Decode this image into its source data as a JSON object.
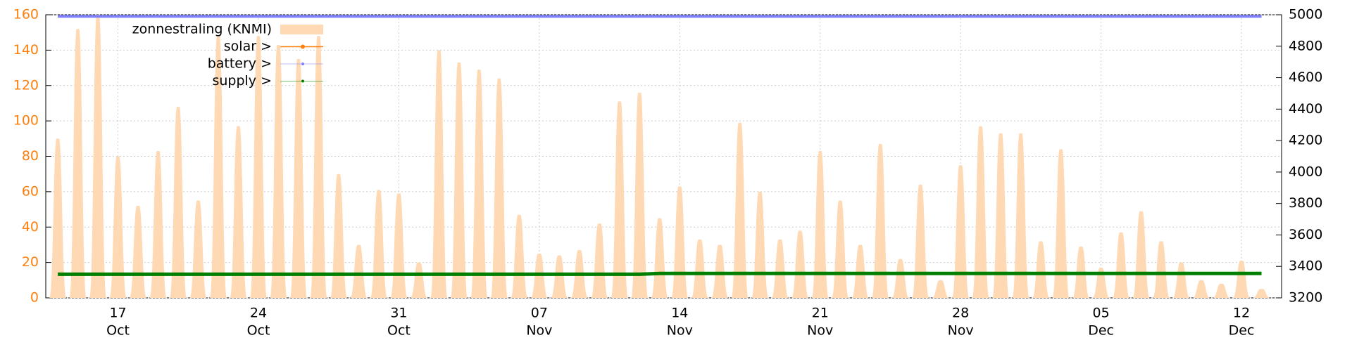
{
  "chart_data": {
    "type": "spike-area",
    "categories": [
      null,
      null,
      null,
      [
        "17",
        "Oct"
      ],
      null,
      null,
      null,
      null,
      null,
      null,
      [
        "24",
        "Oct"
      ],
      null,
      null,
      null,
      null,
      null,
      null,
      [
        "31",
        "Oct"
      ],
      null,
      null,
      null,
      null,
      null,
      null,
      [
        "07",
        "Nov"
      ],
      null,
      null,
      null,
      null,
      null,
      null,
      [
        "14",
        "Nov"
      ],
      null,
      null,
      null,
      null,
      null,
      null,
      [
        "21",
        "Nov"
      ],
      null,
      null,
      null,
      null,
      null,
      null,
      [
        "28",
        "Nov"
      ],
      null,
      null,
      null,
      null,
      null,
      null,
      [
        "05",
        "Dec"
      ],
      null,
      null,
      null,
      null,
      null,
      null,
      [
        "12",
        "Dec"
      ],
      null
    ],
    "series": [
      {
        "name": "zonnestraling (KNMI)",
        "color": "#ffd9b3",
        "values": [
          90,
          152,
          160,
          80,
          52,
          83,
          108,
          55,
          148,
          97,
          148,
          143,
          135,
          148,
          70,
          30,
          61,
          59,
          20,
          140,
          133,
          129,
          124,
          47,
          25,
          24,
          27,
          42,
          111,
          116,
          45,
          63,
          33,
          30,
          99,
          60,
          33,
          38,
          83,
          55,
          30,
          87,
          22,
          64,
          10,
          75,
          97,
          93,
          93,
          32,
          84,
          29,
          17,
          37,
          49,
          32,
          20,
          10,
          8,
          21,
          5
        ]
      },
      {
        "name": "solar >",
        "color": "#ff7f0e"
      },
      {
        "name": "battery >",
        "color": "#7f7fff",
        "axis": "y2",
        "values": [
          4990,
          4990,
          4990,
          4990,
          4990,
          4990,
          4990,
          4990,
          4990,
          4990,
          4990,
          4990,
          4990,
          4990,
          4990,
          4990,
          4990,
          4990,
          4990,
          4990,
          4990,
          4990,
          4990,
          4990,
          4990,
          4990,
          4990,
          4990,
          4990,
          4990,
          4990,
          4990,
          4990,
          4990,
          4990,
          4990,
          4990,
          4990,
          4990,
          4990,
          4990,
          4990,
          4990,
          4990,
          4990,
          4990,
          4990,
          4990,
          4990,
          4990,
          4990,
          4990,
          4990,
          4990,
          4990,
          4990,
          4990,
          4990,
          4990,
          4990,
          4990
        ]
      },
      {
        "name": "supply >",
        "color": "#007f00",
        "axis": "y2",
        "values": [
          3350,
          3350,
          3350,
          3350,
          3350,
          3350,
          3350,
          3350,
          3350,
          3350,
          3350,
          3350,
          3350,
          3350,
          3350,
          3350,
          3350,
          3350,
          3350,
          3350,
          3350,
          3350,
          3350,
          3350,
          3350,
          3350,
          3350,
          3350,
          3350,
          3350,
          3355,
          3355,
          3355,
          3355,
          3355,
          3355,
          3355,
          3355,
          3355,
          3355,
          3355,
          3355,
          3355,
          3355,
          3355,
          3355,
          3355,
          3355,
          3355,
          3355,
          3355,
          3355,
          3355,
          3355,
          3355,
          3355,
          3355,
          3355,
          3355,
          3355,
          3355
        ]
      }
    ],
    "ylim": [
      0,
      160
    ],
    "yticks": [
      0,
      20,
      40,
      60,
      80,
      100,
      120,
      140,
      160
    ],
    "ycolor": "#ff7f0e",
    "y2lim": [
      3200,
      5000
    ],
    "y2ticks": [
      3200,
      3400,
      3600,
      3800,
      4000,
      4200,
      4400,
      4600,
      4800,
      5000
    ],
    "grid": true,
    "legend": "top-left"
  }
}
